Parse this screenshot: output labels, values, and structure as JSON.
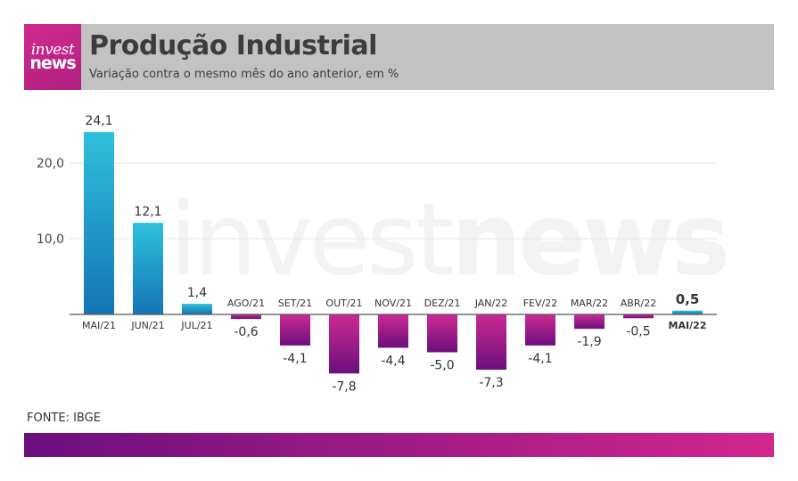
{
  "header": {
    "logo_line1": "invest",
    "logo_line2": "news",
    "title": "Produção Industrial",
    "subtitle": "Variação contra o mesmo mês do ano anterior, em %"
  },
  "watermark": {
    "part1": "invest",
    "part2": "news"
  },
  "source": "FONTE: IBGE",
  "colors": {
    "positive_top": "#2fc0dc",
    "positive_bottom": "#1474b5",
    "negative_top": "#cc2a92",
    "negative_bottom": "#6b0f7d"
  },
  "chart_data": {
    "type": "bar",
    "title": "Produção Industrial",
    "subtitle": "Variação contra o mesmo mês do ano anterior, em %",
    "categories": [
      "MAI/21",
      "JUN/21",
      "JUL/21",
      "AGO/21",
      "SET/21",
      "OUT/21",
      "NOV/21",
      "DEZ/21",
      "JAN/22",
      "FEV/22",
      "MAR/22",
      "ABR/22",
      "MAI/22"
    ],
    "values": [
      24.1,
      12.1,
      1.4,
      -0.6,
      -4.1,
      -7.8,
      -4.4,
      -5.0,
      -7.3,
      -4.1,
      -1.9,
      -0.5,
      0.5
    ],
    "value_labels": [
      "24,1",
      "12,1",
      "1,4",
      "-0,6",
      "-4,1",
      "-7,8",
      "-4,4",
      "-5,0",
      "-7,3",
      "-4,1",
      "-1,9",
      "-0,5",
      "0,5"
    ],
    "highlight_index": 12,
    "ylim": [
      -10,
      25
    ],
    "yticks": [
      10,
      20
    ],
    "ytick_labels": [
      "10,0",
      "20,0"
    ],
    "grid": true,
    "xlabel": "",
    "ylabel": ""
  }
}
